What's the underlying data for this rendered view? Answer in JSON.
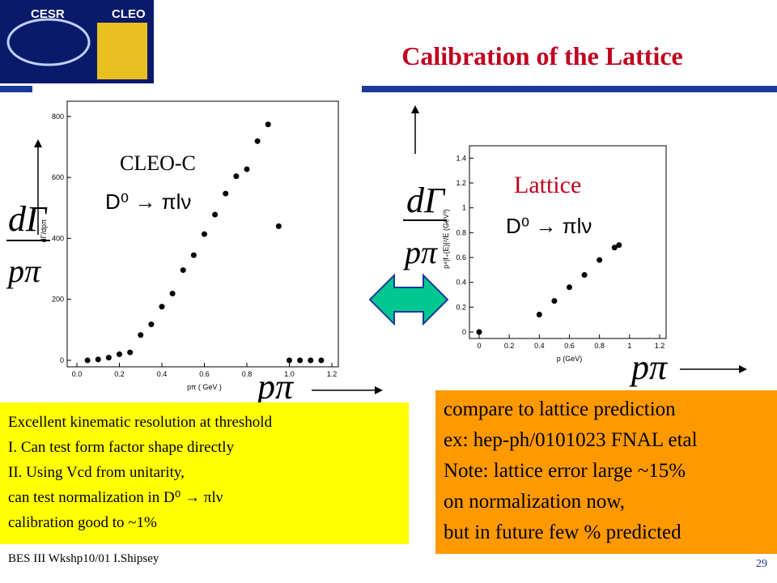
{
  "header": {
    "title": "Calibration of the Lattice",
    "logo_left": "CESR",
    "logo_right": "CLEO"
  },
  "labels": {
    "cleo": "CLEO-C",
    "decay_left": "D⁰ → πlν",
    "lattice": "Lattice",
    "decay_right": "D⁰ → πlν",
    "dgamma_left": "dΓ",
    "p_left": "pπ",
    "dgamma_right": "dΓ",
    "p_right": "pπ",
    "p_bottom_left": "pπ",
    "p_bottom_right": "pπ"
  },
  "chart_data": [
    {
      "type": "scatter",
      "x_label": "pπ ( GeV )",
      "y_label": "dΓ/dpπ",
      "color": "#000000",
      "x": [
        0.05,
        0.1,
        0.15,
        0.2,
        0.25,
        0.3,
        0.35,
        0.4,
        0.45,
        0.5,
        0.55,
        0.6,
        0.65,
        0.7,
        0.75,
        0.8,
        0.85,
        0.9,
        0.95,
        1.0,
        1.05,
        1.1,
        1.15
      ],
      "values": [
        0,
        3,
        9,
        20,
        26,
        83,
        118,
        176,
        219,
        296,
        345,
        414,
        478,
        547,
        604,
        627,
        719,
        774,
        440,
        0,
        0,
        0,
        0
      ],
      "xlim": [
        0,
        1.2
      ],
      "ylim": [
        0,
        850
      ],
      "xticks": [
        {
          "value": 0,
          "label": "0.0"
        },
        {
          "value": 0.2,
          "label": "0.2"
        },
        {
          "value": 0.4,
          "label": "0.4"
        },
        {
          "value": 0.6,
          "label": "0.6"
        },
        {
          "value": 0.8,
          "label": "0.8"
        },
        {
          "value": 1.0,
          "label": "1.0"
        },
        {
          "value": 1.2,
          "label": "1.2"
        }
      ],
      "yticks": [
        0,
        200,
        400,
        600,
        800
      ]
    },
    {
      "type": "scatter",
      "x_label": "p (GeV)",
      "y_label": "p⁴|f₊(E)|²/E (GeV³)",
      "color": "#000000",
      "x": [
        0,
        0.4,
        0.5,
        0.6,
        0.7,
        0.8,
        0.9,
        0.93
      ],
      "values": [
        0,
        0.14,
        0.25,
        0.36,
        0.46,
        0.58,
        0.68,
        0.7
      ],
      "xlim": [
        0,
        1.2
      ],
      "ylim": [
        0,
        1.5
      ],
      "xticks": [
        0,
        0.2,
        0.4,
        0.6,
        0.8,
        1,
        1.2
      ],
      "yticks": [
        0,
        0.2,
        0.4,
        0.6,
        0.8,
        1,
        1.2,
        1.4
      ]
    }
  ],
  "left_box": [
    "Excellent kinematic resolution at threshold",
    "I. Can test form factor shape directly",
    "II. Using Vcd from unitarity,",
    "can test normalization in D⁰ → πlν",
    "calibration good to ~1%"
  ],
  "right_box": [
    "compare to lattice prediction",
    "ex: hep-ph/0101023  FNAL etal",
    "Note: lattice error large ~15%",
    "on normalization now,",
    "but in future few % predicted"
  ],
  "footer": {
    "text": "BES III Wkshp10/01 I.Shipsey",
    "page": "29"
  }
}
